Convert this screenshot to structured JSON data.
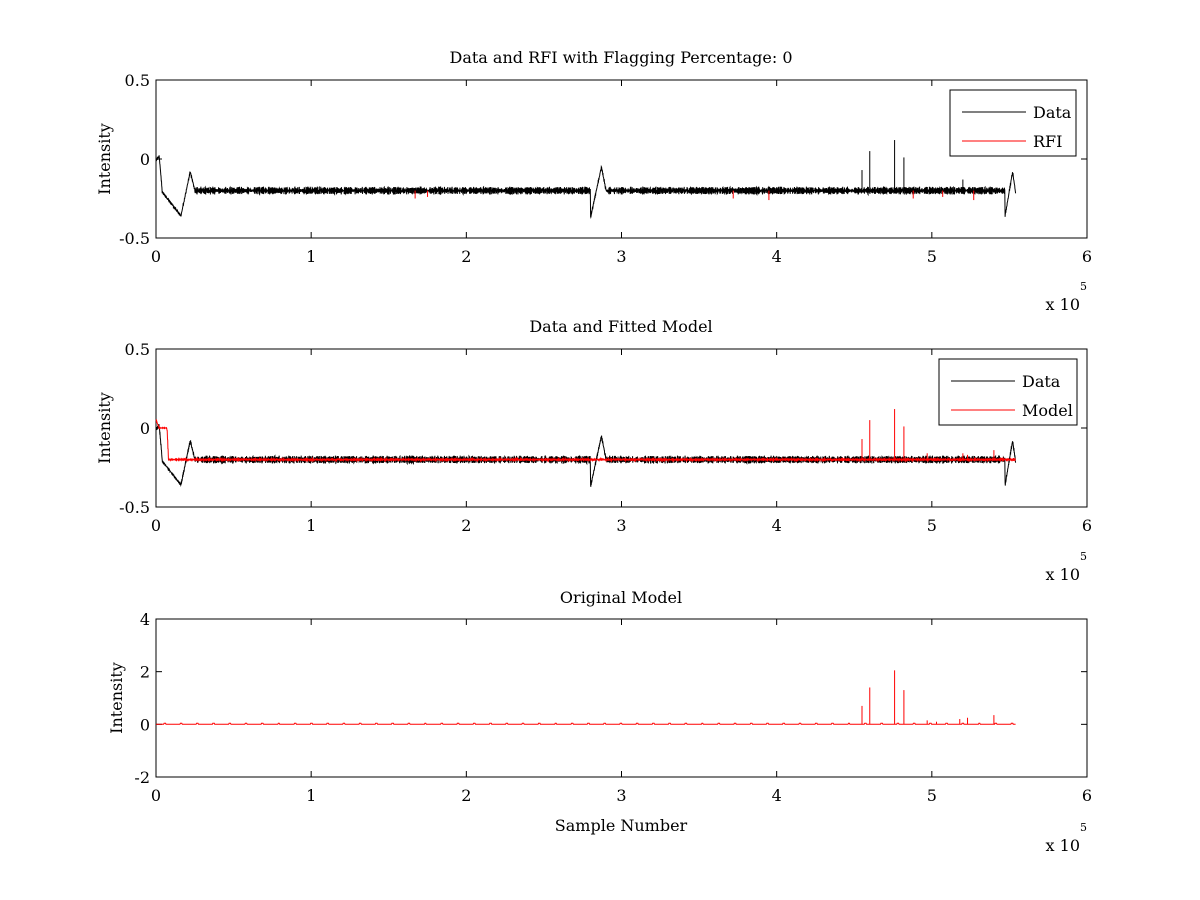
{
  "chart_data": [
    {
      "type": "line",
      "title": "Data and RFI with Flagging Percentage: 0",
      "xlabel": "",
      "ylabel": "Intensity",
      "xlim": [
        0,
        6
      ],
      "ylim": [
        -0.5,
        0.5
      ],
      "x_scale_label": "x 10",
      "x_scale_exponent": "5",
      "x_ticks": [
        "0",
        "1",
        "2",
        "3",
        "4",
        "5",
        "6"
      ],
      "y_ticks": [
        "-0.5",
        "0",
        "0.5"
      ],
      "legend_position": "top-right",
      "series": [
        {
          "name": "Data",
          "color": "#000000",
          "baseline": -0.2,
          "noise": 0.025,
          "end_x": 5.54,
          "features": [
            {
              "x": 0.0,
              "y": -0.01
            },
            {
              "x": 0.02,
              "y": 0.02
            },
            {
              "x": 0.04,
              "y": -0.21
            },
            {
              "x": 0.16,
              "y": -0.36
            },
            {
              "x": 0.22,
              "y": -0.08
            },
            {
              "x": 0.25,
              "y": -0.2
            },
            {
              "x": 2.8,
              "y": -0.37
            },
            {
              "x": 2.87,
              "y": -0.05
            },
            {
              "x": 2.9,
              "y": -0.2
            },
            {
              "x": 5.47,
              "y": -0.37
            },
            {
              "x": 5.52,
              "y": -0.08
            },
            {
              "x": 5.54,
              "y": -0.22
            }
          ],
          "spikes": [
            {
              "x": 4.55,
              "y": -0.07
            },
            {
              "x": 4.6,
              "y": 0.05
            },
            {
              "x": 4.76,
              "y": 0.12
            },
            {
              "x": 4.82,
              "y": 0.01
            },
            {
              "x": 5.2,
              "y": -0.13
            }
          ]
        },
        {
          "name": "RFI",
          "color": "#ff0000",
          "spikes": [
            {
              "x": 1.67,
              "y": -0.25
            },
            {
              "x": 1.75,
              "y": -0.24
            },
            {
              "x": 3.72,
              "y": -0.25
            },
            {
              "x": 3.95,
              "y": -0.26
            },
            {
              "x": 4.88,
              "y": -0.25
            },
            {
              "x": 5.07,
              "y": -0.24
            },
            {
              "x": 5.27,
              "y": -0.26
            }
          ]
        }
      ]
    },
    {
      "type": "line",
      "title": "Data and Fitted Model",
      "xlabel": "",
      "ylabel": "Intensity",
      "xlim": [
        0,
        6
      ],
      "ylim": [
        -0.5,
        0.5
      ],
      "x_scale_label": "x 10",
      "x_scale_exponent": "5",
      "x_ticks": [
        "0",
        "1",
        "2",
        "3",
        "4",
        "5",
        "6"
      ],
      "y_ticks": [
        "-0.5",
        "0",
        "0.5"
      ],
      "legend_position": "top-right",
      "series": [
        {
          "name": "Data",
          "color": "#000000",
          "baseline": -0.2,
          "noise": 0.025,
          "end_x": 5.54,
          "features": [
            {
              "x": 0.0,
              "y": -0.01
            },
            {
              "x": 0.02,
              "y": 0.02
            },
            {
              "x": 0.04,
              "y": -0.21
            },
            {
              "x": 0.16,
              "y": -0.36
            },
            {
              "x": 0.22,
              "y": -0.08
            },
            {
              "x": 0.25,
              "y": -0.2
            },
            {
              "x": 2.8,
              "y": -0.37
            },
            {
              "x": 2.87,
              "y": -0.05
            },
            {
              "x": 2.9,
              "y": -0.2
            },
            {
              "x": 5.47,
              "y": -0.37
            },
            {
              "x": 5.52,
              "y": -0.08
            },
            {
              "x": 5.54,
              "y": -0.22
            }
          ],
          "spikes": []
        },
        {
          "name": "Model",
          "color": "#ff0000",
          "baseline": -0.2,
          "noise": 0.008,
          "end_x": 5.54,
          "features": [
            {
              "x": 0.0,
              "y": 0.05
            },
            {
              "x": 0.02,
              "y": 0.0
            },
            {
              "x": 0.07,
              "y": 0.0
            },
            {
              "x": 0.08,
              "y": -0.19
            },
            {
              "x": 5.54,
              "y": -0.21
            }
          ],
          "spikes": [
            {
              "x": 4.55,
              "y": -0.07
            },
            {
              "x": 4.6,
              "y": 0.05
            },
            {
              "x": 4.76,
              "y": 0.12
            },
            {
              "x": 4.82,
              "y": 0.01
            },
            {
              "x": 4.97,
              "y": -0.16
            },
            {
              "x": 5.2,
              "y": -0.16
            },
            {
              "x": 5.23,
              "y": -0.17
            },
            {
              "x": 5.4,
              "y": -0.14
            }
          ]
        }
      ]
    },
    {
      "type": "line",
      "title": "Original Model",
      "xlabel": "Sample Number",
      "ylabel": "Intensity",
      "xlim": [
        0,
        6
      ],
      "ylim": [
        -2,
        4
      ],
      "x_scale_label": "x 10",
      "x_scale_exponent": "5",
      "x_ticks": [
        "0",
        "1",
        "2",
        "3",
        "4",
        "5",
        "6"
      ],
      "y_ticks": [
        "-2",
        "0",
        "2",
        "4"
      ],
      "legend_position": "none",
      "series": [
        {
          "name": "",
          "color": "#ff0000",
          "baseline": 0.0,
          "noise": 0.0,
          "end_x": 5.54,
          "features": [],
          "periodic_bumps": {
            "start": 0.05,
            "step": 0.105,
            "height": 0.04
          },
          "spikes": [
            {
              "x": 4.55,
              "y": 0.7
            },
            {
              "x": 4.6,
              "y": 1.4
            },
            {
              "x": 4.76,
              "y": 2.05
            },
            {
              "x": 4.82,
              "y": 1.3
            },
            {
              "x": 4.97,
              "y": 0.15
            },
            {
              "x": 5.03,
              "y": 0.1
            },
            {
              "x": 5.18,
              "y": 0.2
            },
            {
              "x": 5.23,
              "y": 0.25
            },
            {
              "x": 5.4,
              "y": 0.35
            }
          ]
        }
      ]
    }
  ]
}
